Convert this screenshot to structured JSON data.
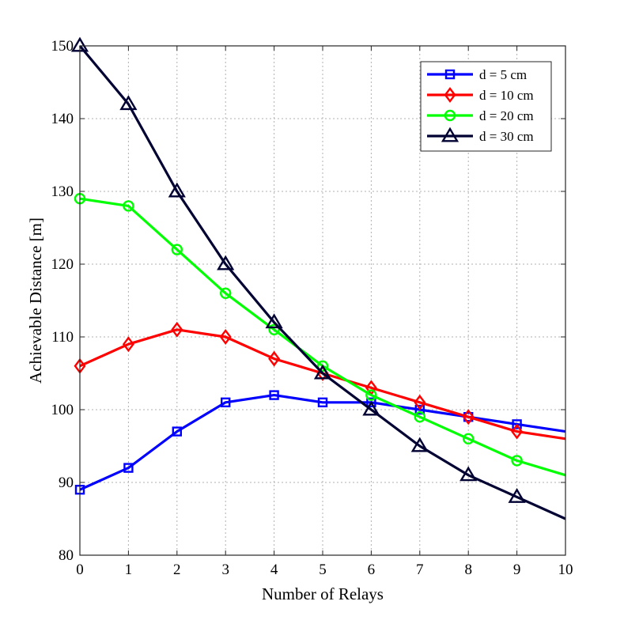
{
  "chart_data": {
    "type": "line",
    "title": "",
    "xlabel": "Number of Relays",
    "ylabel": "Achievable Distance [m]",
    "xlim": [
      0,
      10
    ],
    "ylim": [
      80,
      150
    ],
    "xticks": [
      0,
      1,
      2,
      3,
      4,
      5,
      6,
      7,
      8,
      9,
      10
    ],
    "yticks": [
      80,
      90,
      100,
      110,
      120,
      130,
      140,
      150
    ],
    "grid": true,
    "legend_position": "top-right",
    "series": [
      {
        "name": "d = 5 cm",
        "color": "#0000ff",
        "marker": "square",
        "x": [
          0,
          1,
          2,
          3,
          4,
          5,
          6,
          7,
          8,
          9,
          10
        ],
        "y": [
          89,
          92,
          97,
          101,
          102,
          101,
          101,
          100,
          99,
          98,
          97
        ],
        "marker_x": [
          0,
          1,
          2,
          3,
          4,
          5,
          6,
          7,
          8,
          9
        ]
      },
      {
        "name": "d = 10 cm",
        "color": "#ff0000",
        "marker": "diamond",
        "x": [
          0,
          1,
          2,
          3,
          4,
          5,
          6,
          7,
          8,
          9,
          10
        ],
        "y": [
          106,
          109,
          111,
          110,
          107,
          105,
          103,
          101,
          99,
          97,
          96
        ],
        "marker_x": [
          0,
          1,
          2,
          3,
          4,
          5,
          6,
          7,
          8,
          9
        ]
      },
      {
        "name": "d = 20 cm",
        "color": "#00ff00",
        "marker": "circle",
        "x": [
          0,
          1,
          2,
          3,
          4,
          5,
          6,
          7,
          8,
          9,
          10
        ],
        "y": [
          129,
          128,
          122,
          116,
          111,
          106,
          102,
          99,
          96,
          93,
          91
        ],
        "marker_x": [
          0,
          1,
          2,
          3,
          4,
          5,
          6,
          7,
          8,
          9
        ]
      },
      {
        "name": "d = 30 cm",
        "color": "#000033",
        "marker": "triangle",
        "x": [
          0,
          1,
          2,
          3,
          4,
          5,
          6,
          7,
          8,
          9,
          10
        ],
        "y": [
          150,
          142,
          130,
          120,
          112,
          105,
          100,
          95,
          91,
          88,
          85
        ],
        "marker_x": [
          0,
          1,
          2,
          3,
          4,
          5,
          6,
          7,
          8,
          9
        ]
      }
    ]
  }
}
